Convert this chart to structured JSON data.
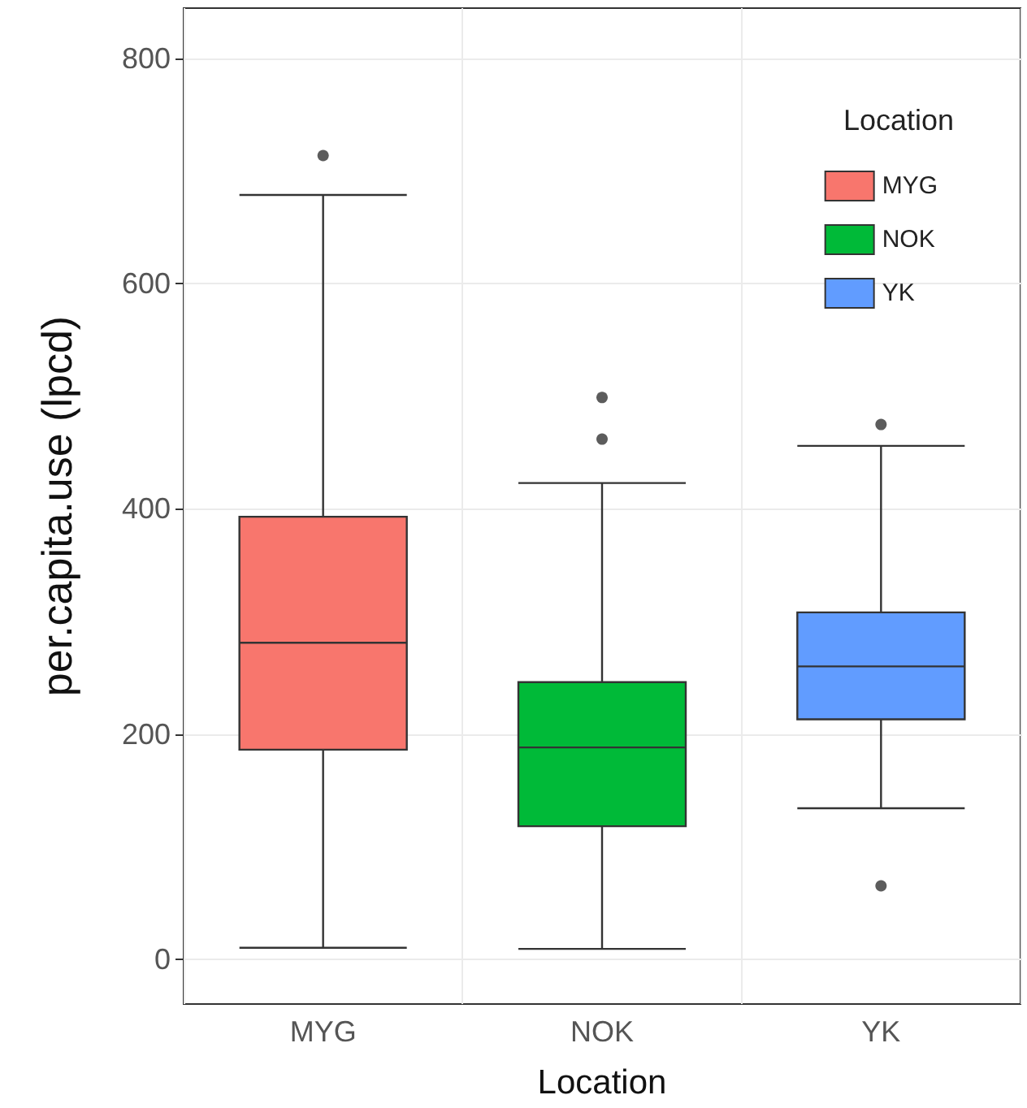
{
  "chart_data": {
    "type": "box",
    "xlabel": "Location",
    "ylabel": "per.capita.use (lpcd)",
    "legend_title": "Location",
    "legend": "top right",
    "grid": true,
    "categories": [
      "MYG",
      "NOK",
      "YK"
    ],
    "series": [
      {
        "name": "MYG",
        "color": "#f8766d",
        "boxes": [
          {
            "low": 10,
            "q1": 186,
            "median": 281,
            "q3": 393,
            "high": 679,
            "outliers": [
              714
            ]
          },
          null,
          null
        ]
      },
      {
        "name": "NOK",
        "color": "#00ba38",
        "boxes": [
          null,
          {
            "low": 9,
            "q1": 118,
            "median": 188,
            "q3": 246,
            "high": 423,
            "outliers": [
              462,
              499
            ]
          },
          null
        ]
      },
      {
        "name": "YK",
        "color": "#619cff",
        "boxes": [
          null,
          null,
          {
            "low": 134,
            "q1": 213,
            "median": 260,
            "q3": 308,
            "high": 456,
            "outliers": [
              65,
              475
            ]
          }
        ]
      }
    ],
    "ylim": [
      -40,
      845
    ],
    "yticks": [
      0,
      200,
      400,
      600,
      800
    ]
  }
}
